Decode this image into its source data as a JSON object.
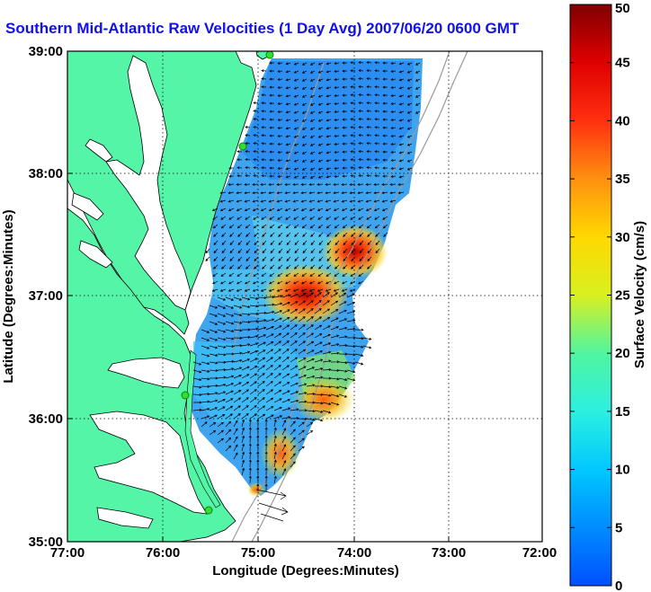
{
  "title": "Southern Mid-Atlantic Raw Velocities (1 Day Avg) 2007/06/20 0600 GMT",
  "xlabel": "Longitude (Degrees:Minutes)",
  "ylabel": "Latitude (Degrees:Minutes)",
  "x_ticks": [
    "77:00",
    "76:00",
    "75:00",
    "74:00",
    "73:00",
    "72:00"
  ],
  "y_ticks": [
    "39:00",
    "38:00",
    "37:00",
    "36:00",
    "35:00"
  ],
  "colorbar": {
    "label": "Surface Velocity (cm/s)",
    "min": 0,
    "max": 50,
    "ticks": [
      "0",
      "5",
      "10",
      "15",
      "20",
      "25",
      "30",
      "35",
      "40",
      "45",
      "50"
    ]
  },
  "colors": {
    "land": "#55f5a8",
    "water": "#ffffff",
    "title": "#1010ee",
    "station": "#30e030"
  },
  "stations": [
    {
      "lon": -74.9,
      "lat": 38.95
    },
    {
      "lon": -75.15,
      "lat": 38.22
    },
    {
      "lon": -75.75,
      "lat": 36.18
    },
    {
      "lon": -75.5,
      "lat": 35.22
    }
  ],
  "hotspots": [
    {
      "lon": -74.5,
      "lat": 36.95,
      "speed": 45
    },
    {
      "lon": -74.1,
      "lat": 37.35,
      "speed": 38
    },
    {
      "lon": -74.3,
      "lat": 36.3,
      "speed": 30
    },
    {
      "lon": -74.7,
      "lat": 35.55,
      "speed": 32
    }
  ]
}
